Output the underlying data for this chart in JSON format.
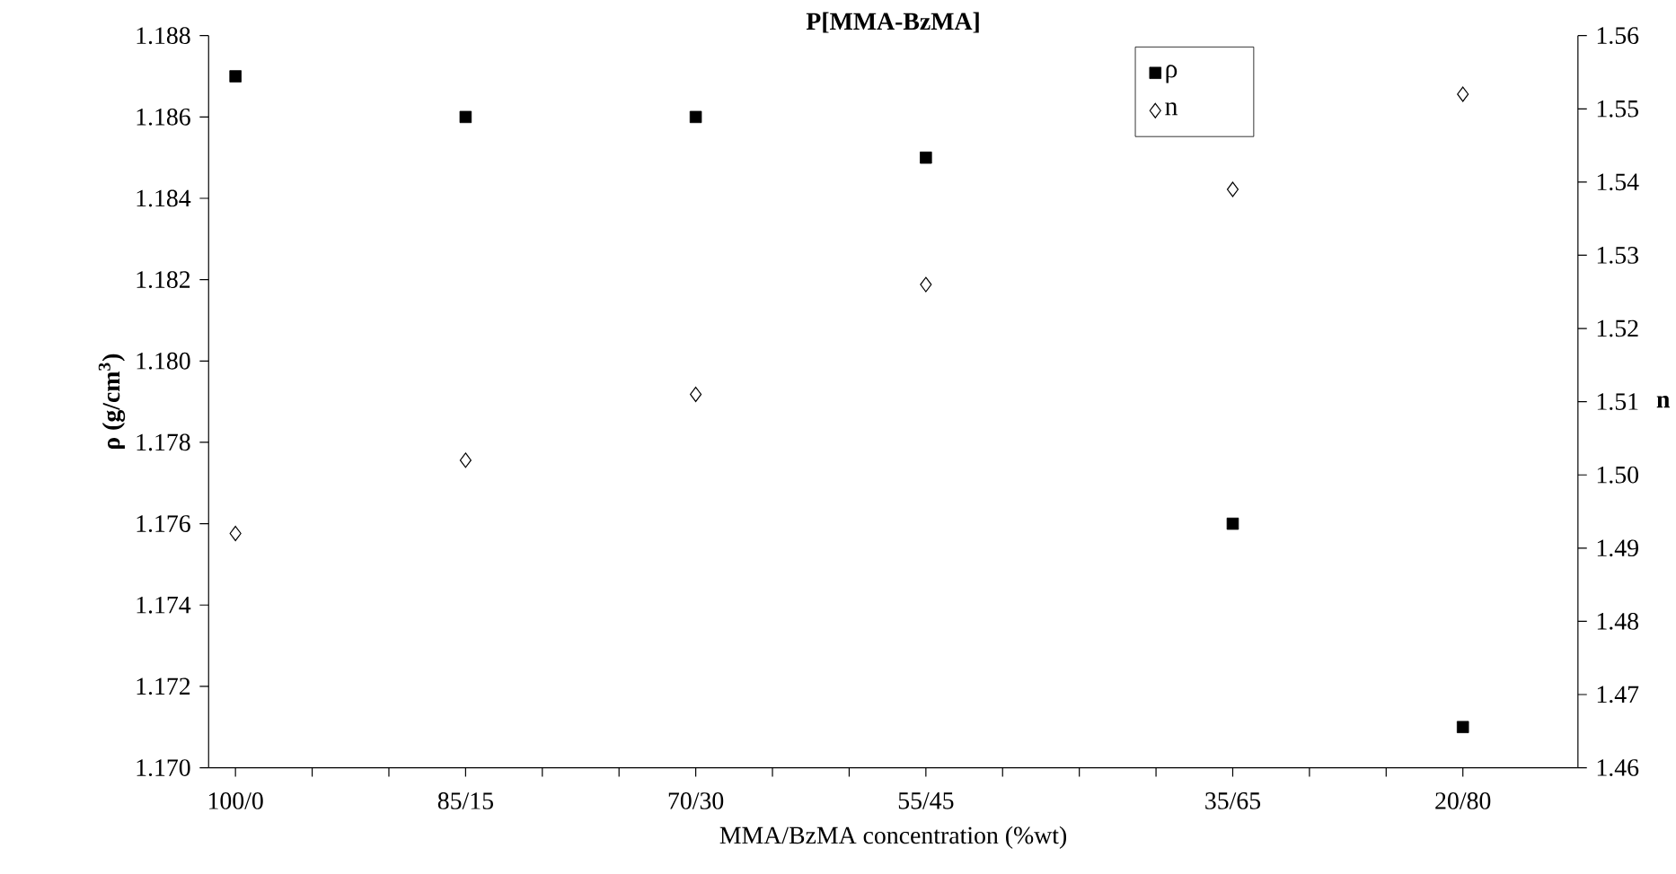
{
  "chart_data": {
    "type": "scatter",
    "title": "P[MMA-BzMA]",
    "xlabel": "MMA/BzMA concentration (%wt)",
    "ylabel": "ρ (g/cm$^{3}$)",
    "y2label": "n",
    "categories": [
      "100/0",
      null,
      null,
      "85/15",
      null,
      null,
      "70/30",
      null,
      null,
      "55/45",
      null,
      null,
      null,
      "35/65",
      null,
      null,
      "20/80"
    ],
    "ylim": [
      1.17,
      1.188
    ],
    "yticks": [
      {
        "value": 1.17,
        "label": "1.170"
      },
      {
        "value": 1.172,
        "label": "1.172"
      },
      {
        "value": 1.174,
        "label": "1.174"
      },
      {
        "value": 1.176,
        "label": "1.176"
      },
      {
        "value": 1.178,
        "label": "1.178"
      },
      {
        "value": 1.18,
        "label": "1.180"
      },
      {
        "value": 1.182,
        "label": "1.182"
      },
      {
        "value": 1.184,
        "label": "1.184"
      },
      {
        "value": 1.186,
        "label": "1.186"
      },
      {
        "value": 1.188,
        "label": "1.188"
      }
    ],
    "y2lim": [
      1.46,
      1.56
    ],
    "y2ticks": [
      {
        "value": 1.46,
        "label": "1.46"
      },
      {
        "value": 1.47,
        "label": "1.47"
      },
      {
        "value": 1.48,
        "label": "1.48"
      },
      {
        "value": 1.49,
        "label": "1.49"
      },
      {
        "value": 1.5,
        "label": "1.50"
      },
      {
        "value": 1.51,
        "label": "1.51"
      },
      {
        "value": 1.52,
        "label": "1.52"
      },
      {
        "value": 1.53,
        "label": "1.53"
      },
      {
        "value": 1.54,
        "label": "1.54"
      },
      {
        "value": 1.55,
        "label": "1.55"
      },
      {
        "value": 1.56,
        "label": "1.56"
      }
    ],
    "series": [
      {
        "name": "ρ",
        "color": "#000000",
        "marker": "square",
        "values": [
          1.187,
          null,
          null,
          1.186,
          null,
          null,
          1.186,
          null,
          null,
          1.185,
          null,
          null,
          null,
          1.176,
          null,
          null,
          1.171
        ]
      },
      {
        "name": "n",
        "color": "#000000",
        "marker": "diamond",
        "axis": "y2",
        "values": [
          1.492,
          null,
          null,
          1.502,
          null,
          null,
          1.511,
          null,
          null,
          1.526,
          null,
          null,
          null,
          1.539,
          null,
          null,
          1.552
        ]
      }
    ],
    "legend": "top",
    "grid": false
  }
}
